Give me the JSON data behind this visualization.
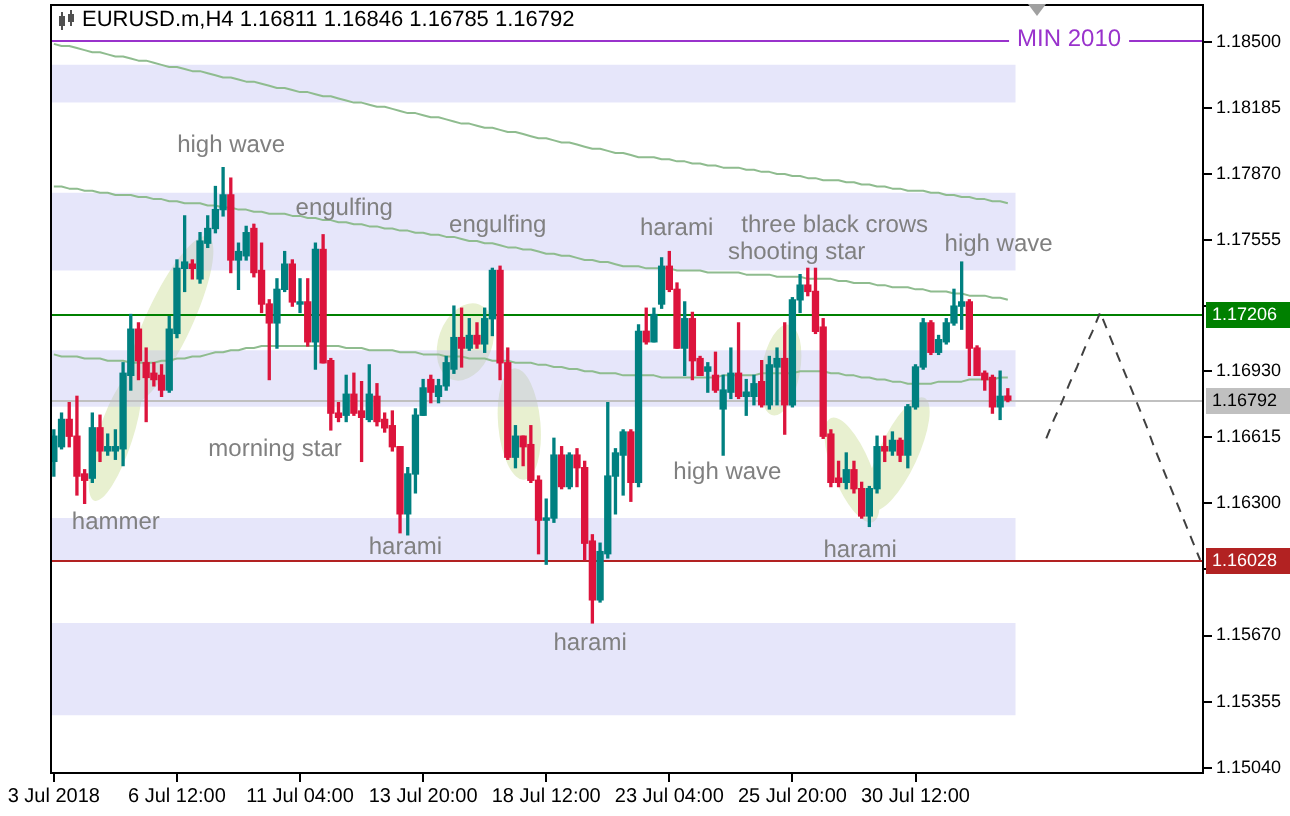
{
  "chart_data": {
    "type": "candlestick",
    "title": "EURUSD.m,H4 1.16811 1.16846 1.16785 1.16792",
    "categories": [
      "3 Jul 2018",
      null,
      null,
      null,
      null,
      null,
      null,
      null,
      null,
      null,
      null,
      null,
      null,
      null,
      null,
      null,
      "6 Jul 12:00",
      null,
      null,
      null,
      null,
      null,
      null,
      null,
      null,
      null,
      null,
      null,
      null,
      null,
      null,
      null,
      "11 Jul 04:00",
      null,
      null,
      null,
      null,
      null,
      null,
      null,
      null,
      null,
      null,
      null,
      null,
      null,
      null,
      null,
      "13 Jul 20:00",
      null,
      null,
      null,
      null,
      null,
      null,
      null,
      null,
      null,
      null,
      null,
      null,
      null,
      null,
      null,
      "18 Jul 12:00",
      null,
      null,
      null,
      null,
      null,
      null,
      null,
      null,
      null,
      null,
      null,
      null,
      null,
      null,
      null,
      "23 Jul 04:00",
      null,
      null,
      null,
      null,
      null,
      null,
      null,
      null,
      null,
      null,
      null,
      null,
      null,
      null,
      null,
      "25 Jul 20:00",
      null,
      null,
      null,
      null,
      null,
      null,
      null,
      null,
      null,
      null,
      null,
      null,
      null,
      null,
      null,
      "30 Jul 12:00",
      null,
      null,
      null,
      null,
      null,
      null,
      null,
      null,
      null,
      null,
      null,
      null,
      null,
      null,
      null,
      null,
      null,
      null,
      null,
      null,
      null,
      null,
      null,
      null,
      null,
      null,
      null,
      null,
      null,
      null,
      null,
      null,
      null,
      null,
      null,
      null,
      null
    ],
    "ohlc": [
      [
        1.165,
        1.1665,
        1.1643,
        1.1662
      ],
      [
        1.1657,
        1.1673,
        1.1656,
        1.167
      ],
      [
        1.167,
        1.1678,
        1.1657,
        1.1662
      ],
      [
        1.1662,
        1.1681,
        1.1634,
        1.1643
      ],
      [
        1.1644,
        1.1646,
        1.163,
        1.1641
      ],
      [
        1.1642,
        1.1673,
        1.164,
        1.1666
      ],
      [
        1.1666,
        1.1672,
        1.165,
        1.1655
      ],
      [
        1.1655,
        1.1663,
        1.1653,
        1.1657
      ],
      [
        1.1655,
        1.1665,
        1.1651,
        1.1657
      ],
      [
        1.1656,
        1.1697,
        1.1648,
        1.1692
      ],
      [
        1.1691,
        1.172,
        1.1684,
        1.1713
      ],
      [
        1.1713,
        1.1716,
        1.1689,
        1.1698
      ],
      [
        1.1697,
        1.1704,
        1.1669,
        1.169
      ],
      [
        1.1692,
        1.1697,
        1.1686,
        1.1689
      ],
      [
        1.1691,
        1.1696,
        1.1681,
        1.1684
      ],
      [
        1.1684,
        1.1719,
        1.1683,
        1.1713
      ],
      [
        1.1711,
        1.1746,
        1.1709,
        1.1742
      ],
      [
        1.1742,
        1.1767,
        1.1731,
        1.1745
      ],
      [
        1.1744,
        1.1746,
        1.1737,
        1.1742
      ],
      [
        1.1737,
        1.1759,
        1.1735,
        1.1755
      ],
      [
        1.1754,
        1.1767,
        1.1752,
        1.1761
      ],
      [
        1.1761,
        1.1781,
        1.1759,
        1.177
      ],
      [
        1.177,
        1.179,
        1.1767,
        1.1777
      ],
      [
        1.1777,
        1.1785,
        1.174,
        1.1746
      ],
      [
        1.1746,
        1.1754,
        1.1732,
        1.175
      ],
      [
        1.1748,
        1.1762,
        1.1746,
        1.1759
      ],
      [
        1.1761,
        1.1763,
        1.1738,
        1.174
      ],
      [
        1.1741,
        1.1754,
        1.1721,
        1.1725
      ],
      [
        1.1725,
        1.1727,
        1.1689,
        1.1716
      ],
      [
        1.1716,
        1.1737,
        1.1704,
        1.1732
      ],
      [
        1.1732,
        1.175,
        1.1731,
        1.1744
      ],
      [
        1.1744,
        1.1746,
        1.1724,
        1.1726
      ],
      [
        1.1725,
        1.1737,
        1.1721,
        1.1726
      ],
      [
        1.1726,
        1.1737,
        1.1705,
        1.1707
      ],
      [
        1.1707,
        1.1754,
        1.1694,
        1.1751
      ],
      [
        1.1751,
        1.1758,
        1.1697,
        1.1697
      ],
      [
        1.1698,
        1.1699,
        1.1665,
        1.1673
      ],
      [
        1.1673,
        1.1678,
        1.1669,
        1.1671
      ],
      [
        1.1672,
        1.1691,
        1.1669,
        1.1682
      ],
      [
        1.1682,
        1.1692,
        1.1672,
        1.1673
      ],
      [
        1.1674,
        1.1688,
        1.165,
        1.1671
      ],
      [
        1.167,
        1.1696,
        1.1669,
        1.1682
      ],
      [
        1.1681,
        1.1687,
        1.1667,
        1.1669
      ],
      [
        1.167,
        1.1673,
        1.1664,
        1.1666
      ],
      [
        1.1667,
        1.1674,
        1.1655,
        1.1657
      ],
      [
        1.1657,
        1.1657,
        1.1616,
        1.1625
      ],
      [
        1.1625,
        1.1647,
        1.1615,
        1.1644
      ],
      [
        1.1644,
        1.1675,
        1.1635,
        1.1672
      ],
      [
        1.1672,
        1.1689,
        1.1672,
        1.1685
      ],
      [
        1.1689,
        1.1691,
        1.1678,
        1.1683
      ],
      [
        1.1681,
        1.1689,
        1.1678,
        1.1686
      ],
      [
        1.1686,
        1.17,
        1.1684,
        1.1697
      ],
      [
        1.1694,
        1.1724,
        1.1692,
        1.1709
      ],
      [
        1.1709,
        1.1723,
        1.1695,
        1.1704
      ],
      [
        1.1704,
        1.1718,
        1.1703,
        1.171
      ],
      [
        1.171,
        1.1716,
        1.1704,
        1.1706
      ],
      [
        1.1706,
        1.1723,
        1.1702,
        1.1718
      ],
      [
        1.1718,
        1.1742,
        1.171,
        1.1741
      ],
      [
        1.1741,
        1.1743,
        1.1689,
        1.1697
      ],
      [
        1.1697,
        1.1704,
        1.1651,
        1.1652
      ],
      [
        1.1652,
        1.1667,
        1.1647,
        1.1662
      ],
      [
        1.1662,
        1.1662,
        1.1648,
        1.1657
      ],
      [
        1.1658,
        1.1667,
        1.164,
        1.1641
      ],
      [
        1.1641,
        1.1643,
        1.1606,
        1.1622
      ],
      [
        1.1622,
        1.1632,
        1.1601,
        1.1623
      ],
      [
        1.1623,
        1.1661,
        1.1621,
        1.1653
      ],
      [
        1.1653,
        1.1657,
        1.1637,
        1.1638
      ],
      [
        1.1638,
        1.1654,
        1.1637,
        1.1653
      ],
      [
        1.1653,
        1.1656,
        1.1638,
        1.1647
      ],
      [
        1.1647,
        1.165,
        1.1603,
        1.1611
      ],
      [
        1.1612,
        1.1615,
        1.1573,
        1.1584
      ],
      [
        1.1584,
        1.1611,
        1.1583,
        1.1607
      ],
      [
        1.1606,
        1.1678,
        1.1604,
        1.1643
      ],
      [
        1.1643,
        1.1656,
        1.1625,
        1.1654
      ],
      [
        1.1653,
        1.1665,
        1.1634,
        1.1664
      ],
      [
        1.1664,
        1.1665,
        1.1631,
        1.164
      ],
      [
        1.164,
        1.1715,
        1.1638,
        1.1712
      ],
      [
        1.1712,
        1.1723,
        1.1706,
        1.1707
      ],
      [
        1.1707,
        1.1723,
        1.1707,
        1.172
      ],
      [
        1.1725,
        1.1747,
        1.1723,
        1.1743
      ],
      [
        1.1743,
        1.175,
        1.1731,
        1.1732
      ],
      [
        1.1732,
        1.1735,
        1.1704,
        1.1704
      ],
      [
        1.1704,
        1.1726,
        1.1691,
        1.1718
      ],
      [
        1.1718,
        1.1721,
        1.1689,
        1.1698
      ],
      [
        1.1699,
        1.17,
        1.1691,
        1.1691
      ],
      [
        1.1693,
        1.1697,
        1.1683,
        1.1695
      ],
      [
        1.1691,
        1.1702,
        1.1683,
        1.1684
      ],
      [
        1.1675,
        1.1691,
        1.1653,
        1.1684
      ],
      [
        1.1683,
        1.1704,
        1.168,
        1.1692
      ],
      [
        1.1692,
        1.1716,
        1.168,
        1.1681
      ],
      [
        1.1681,
        1.1689,
        1.1672,
        1.1683
      ],
      [
        1.1681,
        1.1691,
        1.1677,
        1.1687
      ],
      [
        1.1688,
        1.1698,
        1.1676,
        1.1677
      ],
      [
        1.1677,
        1.17,
        1.1675,
        1.1696
      ],
      [
        1.1695,
        1.1704,
        1.1677,
        1.1699
      ],
      [
        1.1699,
        1.1716,
        1.1663,
        1.1677
      ],
      [
        1.1677,
        1.1728,
        1.1676,
        1.1727
      ],
      [
        1.1727,
        1.1739,
        1.1721,
        1.1734
      ],
      [
        1.1734,
        1.1742,
        1.1729,
        1.1731
      ],
      [
        1.1731,
        1.1742,
        1.1711,
        1.1712
      ],
      [
        1.1714,
        1.1718,
        1.1661,
        1.1662
      ],
      [
        1.1663,
        1.1665,
        1.1638,
        1.164
      ],
      [
        1.1642,
        1.165,
        1.1638,
        1.164
      ],
      [
        1.164,
        1.1654,
        1.1637,
        1.1646
      ],
      [
        1.1646,
        1.165,
        1.1635,
        1.1637
      ],
      [
        1.1637,
        1.164,
        1.1623,
        1.1624
      ],
      [
        1.1624,
        1.1638,
        1.1619,
        1.1637
      ],
      [
        1.1637,
        1.1662,
        1.1635,
        1.1657
      ],
      [
        1.1657,
        1.1662,
        1.165,
        1.1655
      ],
      [
        1.1655,
        1.1664,
        1.1653,
        1.166
      ],
      [
        1.166,
        1.1661,
        1.165,
        1.1653
      ],
      [
        1.1653,
        1.1677,
        1.1647,
        1.1676
      ],
      [
        1.1676,
        1.1696,
        1.1675,
        1.1695
      ],
      [
        1.1695,
        1.1718,
        1.1694,
        1.1716
      ],
      [
        1.1716,
        1.1717,
        1.1701,
        1.1702
      ],
      [
        1.1702,
        1.171,
        1.1701,
        1.1708
      ],
      [
        1.1707,
        1.1718,
        1.1706,
        1.1716
      ],
      [
        1.1716,
        1.1732,
        1.1715,
        1.1724
      ],
      [
        1.1724,
        1.1745,
        1.1713,
        1.1726
      ],
      [
        1.1726,
        1.1727,
        1.1691,
        1.1704
      ],
      [
        1.1704,
        1.1705,
        1.1691,
        1.1691
      ],
      [
        1.1692,
        1.1693,
        1.1684,
        1.1689
      ],
      [
        1.169,
        1.1691,
        1.1673,
        1.1676
      ],
      [
        1.1676,
        1.1693,
        1.167,
        1.1681
      ],
      [
        1.16811,
        1.16846,
        1.16785,
        1.16792
      ],
      null,
      null,
      null,
      null,
      null,
      null,
      null,
      null,
      null,
      null,
      null,
      null,
      null,
      null,
      null,
      null,
      null,
      null,
      null,
      null,
      null,
      null,
      null,
      null,
      null
    ],
    "colors": [
      "#008080",
      "#008080",
      "#dc143c",
      "#dc143c",
      "#dc143c",
      "#008080",
      "#dc143c",
      "#008080",
      "#008080",
      "#008080",
      "#008080",
      "#dc143c",
      "#dc143c",
      "#dc143c",
      "#dc143c",
      "#008080",
      "#008080",
      "#008080",
      "#dc143c",
      "#008080",
      "#008080",
      "#008080",
      "#008080",
      "#dc143c",
      "#008080",
      "#008080",
      "#dc143c",
      "#dc143c",
      "#dc143c",
      "#008080",
      "#008080",
      "#dc143c",
      "#008080",
      "#dc143c",
      "#008080",
      "#dc143c",
      "#dc143c",
      "#dc143c",
      "#008080",
      "#dc143c",
      "#dc143c",
      "#008080",
      "#dc143c",
      "#dc143c",
      "#dc143c",
      "#dc143c",
      "#008080",
      "#008080",
      "#008080",
      "#dc143c",
      "#008080",
      "#008080",
      "#008080",
      "#dc143c",
      "#008080",
      "#dc143c",
      "#008080",
      "#008080",
      "#dc143c",
      "#dc143c",
      "#008080",
      "#dc143c",
      "#dc143c",
      "#dc143c",
      "#008080",
      "#008080",
      "#dc143c",
      "#008080",
      "#dc143c",
      "#dc143c",
      "#dc143c",
      "#008080",
      "#008080",
      "#008080",
      "#008080",
      "#dc143c",
      "#008080",
      "#dc143c",
      "#008080",
      "#008080",
      "#dc143c",
      "#dc143c",
      "#008080",
      "#dc143c",
      "#dc143c",
      "#008080",
      "#dc143c",
      "#008080",
      "#008080",
      "#dc143c",
      "#008080",
      "#008080",
      "#dc143c",
      "#008080",
      "#008080",
      "#dc143c",
      "#008080",
      "#008080",
      "#dc143c",
      "#dc143c",
      "#dc143c",
      "#dc143c",
      "#dc143c",
      "#008080",
      "#dc143c",
      "#dc143c",
      "#008080",
      "#008080",
      "#dc143c",
      "#008080",
      "#dc143c",
      "#008080",
      "#008080",
      "#008080",
      "#dc143c",
      "#008080",
      "#008080",
      "#008080",
      "#008080",
      "#dc143c",
      "#dc143c",
      "#dc143c",
      "#dc143c",
      "#008080",
      "#dc143c",
      null,
      null,
      null,
      null,
      null,
      null,
      null,
      null,
      null,
      null,
      null,
      null,
      null,
      null,
      null,
      null,
      null,
      null,
      null,
      null,
      null,
      null,
      null,
      null,
      null
    ],
    "series": [
      {
        "type": "line",
        "color": "#8fbc8f",
        "values": [
          1.1849,
          1.1848,
          1.1848,
          1.1847,
          1.1846,
          1.1845,
          1.1845,
          1.1844,
          1.1843,
          1.1843,
          1.1842,
          1.1841,
          1.1841,
          1.184,
          1.1839,
          1.1838,
          1.1838,
          1.1837,
          1.1836,
          1.1836,
          1.1835,
          1.1834,
          1.1833,
          1.1833,
          1.1832,
          1.1831,
          1.1831,
          1.183,
          1.1829,
          1.1828,
          1.1828,
          1.1827,
          1.1826,
          1.1826,
          1.1825,
          1.1824,
          1.1824,
          1.1823,
          1.1822,
          1.1821,
          1.1821,
          1.182,
          1.1819,
          1.1819,
          1.1818,
          1.1817,
          1.1816,
          1.1816,
          1.1815,
          1.1814,
          1.1814,
          1.1813,
          1.1812,
          1.1811,
          1.1811,
          1.181,
          1.1809,
          1.1809,
          1.1808,
          1.1807,
          1.1807,
          1.1806,
          1.1805,
          1.1804,
          1.1804,
          1.1803,
          1.1802,
          1.1802,
          1.1801,
          1.18,
          1.1799,
          1.1799,
          1.1798,
          1.1797,
          1.1797,
          1.1796,
          1.1795,
          1.1795,
          1.1795,
          1.1794,
          1.1794,
          1.1793,
          1.1793,
          1.1792,
          1.1792,
          1.1791,
          1.1791,
          1.179,
          1.179,
          1.179,
          1.1789,
          1.1789,
          1.1788,
          1.1788,
          1.1787,
          1.1787,
          1.1786,
          1.1786,
          1.1785,
          1.1785,
          1.1784,
          1.1784,
          1.1784,
          1.1783,
          1.1783,
          1.1782,
          1.1782,
          1.1781,
          1.1781,
          1.178,
          1.178,
          1.1779,
          1.1779,
          1.1779,
          1.1778,
          1.1778,
          1.1777,
          1.1777,
          1.1776,
          1.1776,
          1.1775,
          1.1775,
          1.1774,
          1.1774,
          1.1773,
          null,
          null,
          null,
          null,
          null,
          null,
          null,
          null,
          null,
          null,
          null,
          null,
          null,
          null,
          null,
          null,
          null,
          null,
          null,
          null,
          null,
          null,
          null,
          null,
          null
        ]
      },
      {
        "type": "line",
        "color": "#8fbc8f",
        "values": [
          1.1781,
          1.1781,
          1.178,
          1.178,
          1.1779,
          1.1779,
          1.1778,
          1.1778,
          1.1777,
          1.1777,
          1.1777,
          1.1776,
          1.1776,
          1.1775,
          1.1775,
          1.1774,
          1.1774,
          1.1773,
          1.1773,
          1.1773,
          1.1772,
          1.1772,
          1.1771,
          1.1771,
          1.177,
          1.177,
          1.1769,
          1.1769,
          1.1768,
          1.1768,
          1.1768,
          1.1767,
          1.1767,
          1.1766,
          1.1766,
          1.1765,
          1.1765,
          1.1764,
          1.1764,
          1.1763,
          1.1763,
          1.1762,
          1.1762,
          1.1761,
          1.1761,
          1.176,
          1.176,
          1.1759,
          1.1759,
          1.1758,
          1.1758,
          1.1757,
          1.1757,
          1.1756,
          1.1755,
          1.1755,
          1.1754,
          1.1754,
          1.1753,
          1.1752,
          1.1752,
          1.1751,
          1.1751,
          1.175,
          1.1749,
          1.1749,
          1.1748,
          1.1748,
          1.1747,
          1.1746,
          1.1746,
          1.1745,
          1.1745,
          1.1744,
          1.1743,
          1.1743,
          1.1743,
          1.1742,
          1.1742,
          1.1742,
          1.1742,
          1.1741,
          1.1741,
          1.1741,
          1.1741,
          1.174,
          1.174,
          1.174,
          1.174,
          1.174,
          1.1739,
          1.1739,
          1.1739,
          1.1739,
          1.1738,
          1.1738,
          1.1738,
          1.1738,
          1.1737,
          1.1737,
          1.1737,
          1.1737,
          1.1736,
          1.1736,
          1.1735,
          1.1735,
          1.1735,
          1.1734,
          1.1734,
          1.1733,
          1.1733,
          1.1733,
          1.1732,
          1.1732,
          1.1731,
          1.1731,
          1.1731,
          1.173,
          1.173,
          1.1729,
          1.1729,
          1.1729,
          1.1728,
          1.1728,
          1.1727,
          null,
          null,
          null,
          null,
          null,
          null,
          null,
          null,
          null,
          null,
          null,
          null,
          null,
          null,
          null,
          null,
          null,
          null,
          null,
          null,
          null,
          null,
          null,
          null,
          null
        ]
      },
      {
        "type": "line",
        "color": "#8fbc8f",
        "values": [
          1.1701,
          1.17,
          1.17,
          1.17,
          1.1699,
          1.1699,
          1.1699,
          1.1698,
          1.1698,
          1.1698,
          1.1697,
          1.1697,
          1.1697,
          1.1697,
          1.1698,
          1.1698,
          1.1699,
          1.1699,
          1.17,
          1.17,
          1.1701,
          1.1702,
          1.1702,
          1.1703,
          1.1703,
          1.1704,
          1.1704,
          1.1705,
          1.1705,
          1.1705,
          1.1705,
          1.1705,
          1.1705,
          1.1705,
          1.1705,
          1.1705,
          1.1705,
          1.1705,
          1.1704,
          1.1704,
          1.1704,
          1.1703,
          1.1703,
          1.1703,
          1.1703,
          1.1702,
          1.1702,
          1.1702,
          1.1701,
          1.1701,
          1.1701,
          1.17,
          1.17,
          1.17,
          1.1699,
          1.1699,
          1.1699,
          1.1698,
          1.1698,
          1.1698,
          1.1697,
          1.1697,
          1.1697,
          1.1696,
          1.1696,
          1.1695,
          1.1695,
          1.1694,
          1.1694,
          1.1693,
          1.1693,
          1.1692,
          1.1692,
          1.1692,
          1.1691,
          1.1691,
          1.1691,
          1.1691,
          1.1691,
          1.169,
          1.169,
          1.169,
          1.169,
          1.169,
          1.169,
          1.169,
          1.169,
          1.1691,
          1.1691,
          1.1691,
          1.1691,
          1.1691,
          1.1692,
          1.1692,
          1.1692,
          1.1692,
          1.1692,
          1.1693,
          1.1693,
          1.1693,
          1.1693,
          1.1692,
          1.1692,
          1.1691,
          1.1691,
          1.169,
          1.169,
          1.1689,
          1.1689,
          1.1688,
          1.1688,
          1.1687,
          1.1687,
          1.1687,
          1.1687,
          1.1688,
          1.1688,
          1.1688,
          1.1688,
          1.1689,
          1.1689,
          1.1689,
          1.1689,
          1.169,
          1.169,
          null,
          null,
          null,
          null,
          null,
          null,
          null,
          null,
          null,
          null,
          null,
          null,
          null,
          null,
          null,
          null,
          null,
          null,
          null,
          null,
          null,
          null,
          null,
          null,
          null
        ]
      },
      {
        "type": "line",
        "color": "#404040",
        "line_style": "dashed",
        "values": [
          null,
          null,
          null,
          null,
          null,
          null,
          null,
          null,
          null,
          null,
          null,
          null,
          null,
          null,
          null,
          null,
          null,
          null,
          null,
          null,
          null,
          null,
          null,
          null,
          null,
          null,
          null,
          null,
          null,
          null,
          null,
          null,
          null,
          null,
          null,
          null,
          null,
          null,
          null,
          null,
          null,
          null,
          null,
          null,
          null,
          null,
          null,
          null,
          null,
          null,
          null,
          null,
          null,
          null,
          null,
          null,
          null,
          null,
          null,
          null,
          null,
          null,
          null,
          null,
          null,
          null,
          null,
          null,
          null,
          null,
          null,
          null,
          null,
          null,
          null,
          null,
          null,
          null,
          null,
          null,
          null,
          null,
          null,
          null,
          null,
          null,
          null,
          null,
          null,
          null,
          null,
          null,
          null,
          null,
          null,
          null,
          null,
          null,
          null,
          null,
          null,
          null,
          null,
          null,
          null,
          null,
          null,
          null,
          null,
          null,
          null,
          null,
          null,
          null,
          null,
          null,
          null,
          null,
          null,
          null,
          null,
          null,
          null,
          null,
          null,
          null,
          null,
          null,
          null,
          1.1661,
          1.167,
          1.1678,
          1.1687,
          1.1695,
          1.1704,
          1.1712,
          1.1721,
          1.1712,
          1.1703,
          1.1694,
          1.1685,
          1.1676,
          1.1667,
          1.1657,
          1.1648,
          1.1639,
          1.163,
          1.1621,
          1.1612,
          1.1603
        ]
      }
    ],
    "ylim": [
      1.1501,
      1.1868
    ],
    "yticks": [
      {
        "value": 1.1504,
        "label": "1.15040"
      },
      1.15355,
      {
        "value": 1.1567,
        "label": "1.15670"
      },
      {
        "value": 1.15985,
        "label": null
      },
      {
        "value": 1.163,
        "label": "1.16300"
      },
      1.16615,
      {
        "value": 1.1693,
        "label": "1.16930"
      },
      {
        "value": 1.1724,
        "label": null
      },
      1.17555,
      {
        "value": 1.1787,
        "label": "1.17870"
      },
      1.18185,
      {
        "value": 1.185,
        "label": "1.18500"
      }
    ],
    "ref_lines": [
      {
        "axis": "y",
        "value": 1.1851,
        "color": "#9932cc"
      },
      {
        "axis": "y",
        "value": 1.17206,
        "label": "1.17206",
        "color": "#008000"
      },
      {
        "axis": "y",
        "value": 1.16792,
        "label": "1.16792",
        "color": "#c0c0c0"
      },
      {
        "axis": "y",
        "value": 1.16028,
        "label": "1.16028",
        "color": "#b22222"
      }
    ],
    "bands": [
      {
        "axis": "y",
        "from": 1.1821,
        "to": 1.1839,
        "color": "#e6e6fa"
      },
      {
        "axis": "y",
        "from": 1.1741,
        "to": 1.1778,
        "color": "#e6e6fa"
      },
      {
        "axis": "y",
        "from": 1.1676,
        "to": 1.1703,
        "color": "#e6e6fa"
      },
      {
        "axis": "y",
        "from": 1.1602,
        "to": 1.1623,
        "color": "#e6e6fa"
      },
      {
        "axis": "y",
        "from": 1.1529,
        "to": 1.1573,
        "color": "#e6e6fa"
      }
    ],
    "annotations": [
      {
        "text": "MIN 2010",
        "y": 1.1851
      },
      "hammer",
      "high wave",
      "engulfing",
      "morning star",
      "engulfing",
      "harami",
      "harami",
      "harami",
      "three black crows",
      "shooting star",
      "high wave",
      "harami",
      "high wave"
    ]
  }
}
